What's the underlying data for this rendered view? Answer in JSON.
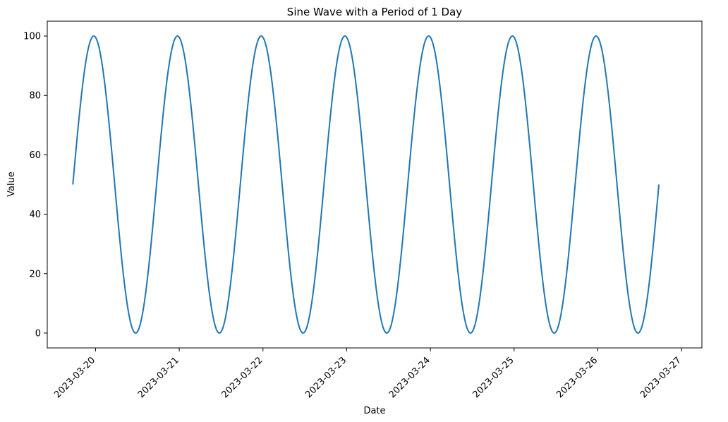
{
  "chart_data": {
    "type": "line",
    "title": "Sine Wave with a Period of 1 Day",
    "xlabel": "Date",
    "ylabel": "Value",
    "xlim": [
      "2023-03-19T10:10",
      "2023-03-27T05:50"
    ],
    "ylim": [
      -5,
      105
    ],
    "grid": false,
    "legend": "none",
    "colors": {
      "line": "#1f77b4",
      "axes": "#000000",
      "background": "#ffffff"
    },
    "x_ticks": [
      {
        "value": "2023-03-20",
        "label": "2023-03-20"
      },
      {
        "value": "2023-03-21",
        "label": "2023-03-21"
      },
      {
        "value": "2023-03-22",
        "label": "2023-03-22"
      },
      {
        "value": "2023-03-23",
        "label": "2023-03-23"
      },
      {
        "value": "2023-03-24",
        "label": "2023-03-24"
      },
      {
        "value": "2023-03-25",
        "label": "2023-03-25"
      },
      {
        "value": "2023-03-26",
        "label": "2023-03-26"
      },
      {
        "value": "2023-03-27",
        "label": "2023-03-27"
      }
    ],
    "y_ticks": [
      {
        "value": 0,
        "label": "0"
      },
      {
        "value": 20,
        "label": "20"
      },
      {
        "value": 40,
        "label": "40"
      },
      {
        "value": 60,
        "label": "60"
      },
      {
        "value": 80,
        "label": "80"
      },
      {
        "value": 100,
        "label": "100"
      }
    ],
    "series": [
      {
        "values": [
          {
            "x": "2023-03-19T17:30",
            "y": 50
          },
          {
            "x": "2023-03-19T23:30",
            "y": 100
          },
          {
            "x": "2023-03-20T05:30",
            "y": 50
          },
          {
            "x": "2023-03-20T11:30",
            "y": 0
          },
          {
            "x": "2023-03-20T17:30",
            "y": 50
          },
          {
            "x": "2023-03-20T23:30",
            "y": 100
          },
          {
            "x": "2023-03-21T05:30",
            "y": 50
          },
          {
            "x": "2023-03-21T11:30",
            "y": 0
          },
          {
            "x": "2023-03-21T17:30",
            "y": 50
          },
          {
            "x": "2023-03-21T23:30",
            "y": 100
          },
          {
            "x": "2023-03-22T05:30",
            "y": 50
          },
          {
            "x": "2023-03-22T11:30",
            "y": 0
          },
          {
            "x": "2023-03-22T17:30",
            "y": 50
          },
          {
            "x": "2023-03-22T23:30",
            "y": 100
          },
          {
            "x": "2023-03-23T05:30",
            "y": 50
          },
          {
            "x": "2023-03-23T11:30",
            "y": 0
          },
          {
            "x": "2023-03-23T17:30",
            "y": 50
          },
          {
            "x": "2023-03-23T23:30",
            "y": 100
          },
          {
            "x": "2023-03-24T05:30",
            "y": 50
          },
          {
            "x": "2023-03-24T11:30",
            "y": 0
          },
          {
            "x": "2023-03-24T17:30",
            "y": 50
          },
          {
            "x": "2023-03-24T23:30",
            "y": 100
          },
          {
            "x": "2023-03-25T05:30",
            "y": 50
          },
          {
            "x": "2023-03-25T11:30",
            "y": 0
          },
          {
            "x": "2023-03-25T17:30",
            "y": 50
          },
          {
            "x": "2023-03-25T23:30",
            "y": 100
          },
          {
            "x": "2023-03-26T05:30",
            "y": 50
          },
          {
            "x": "2023-03-26T11:30",
            "y": 0
          },
          {
            "x": "2023-03-26T17:30",
            "y": 50
          }
        ]
      }
    ]
  }
}
